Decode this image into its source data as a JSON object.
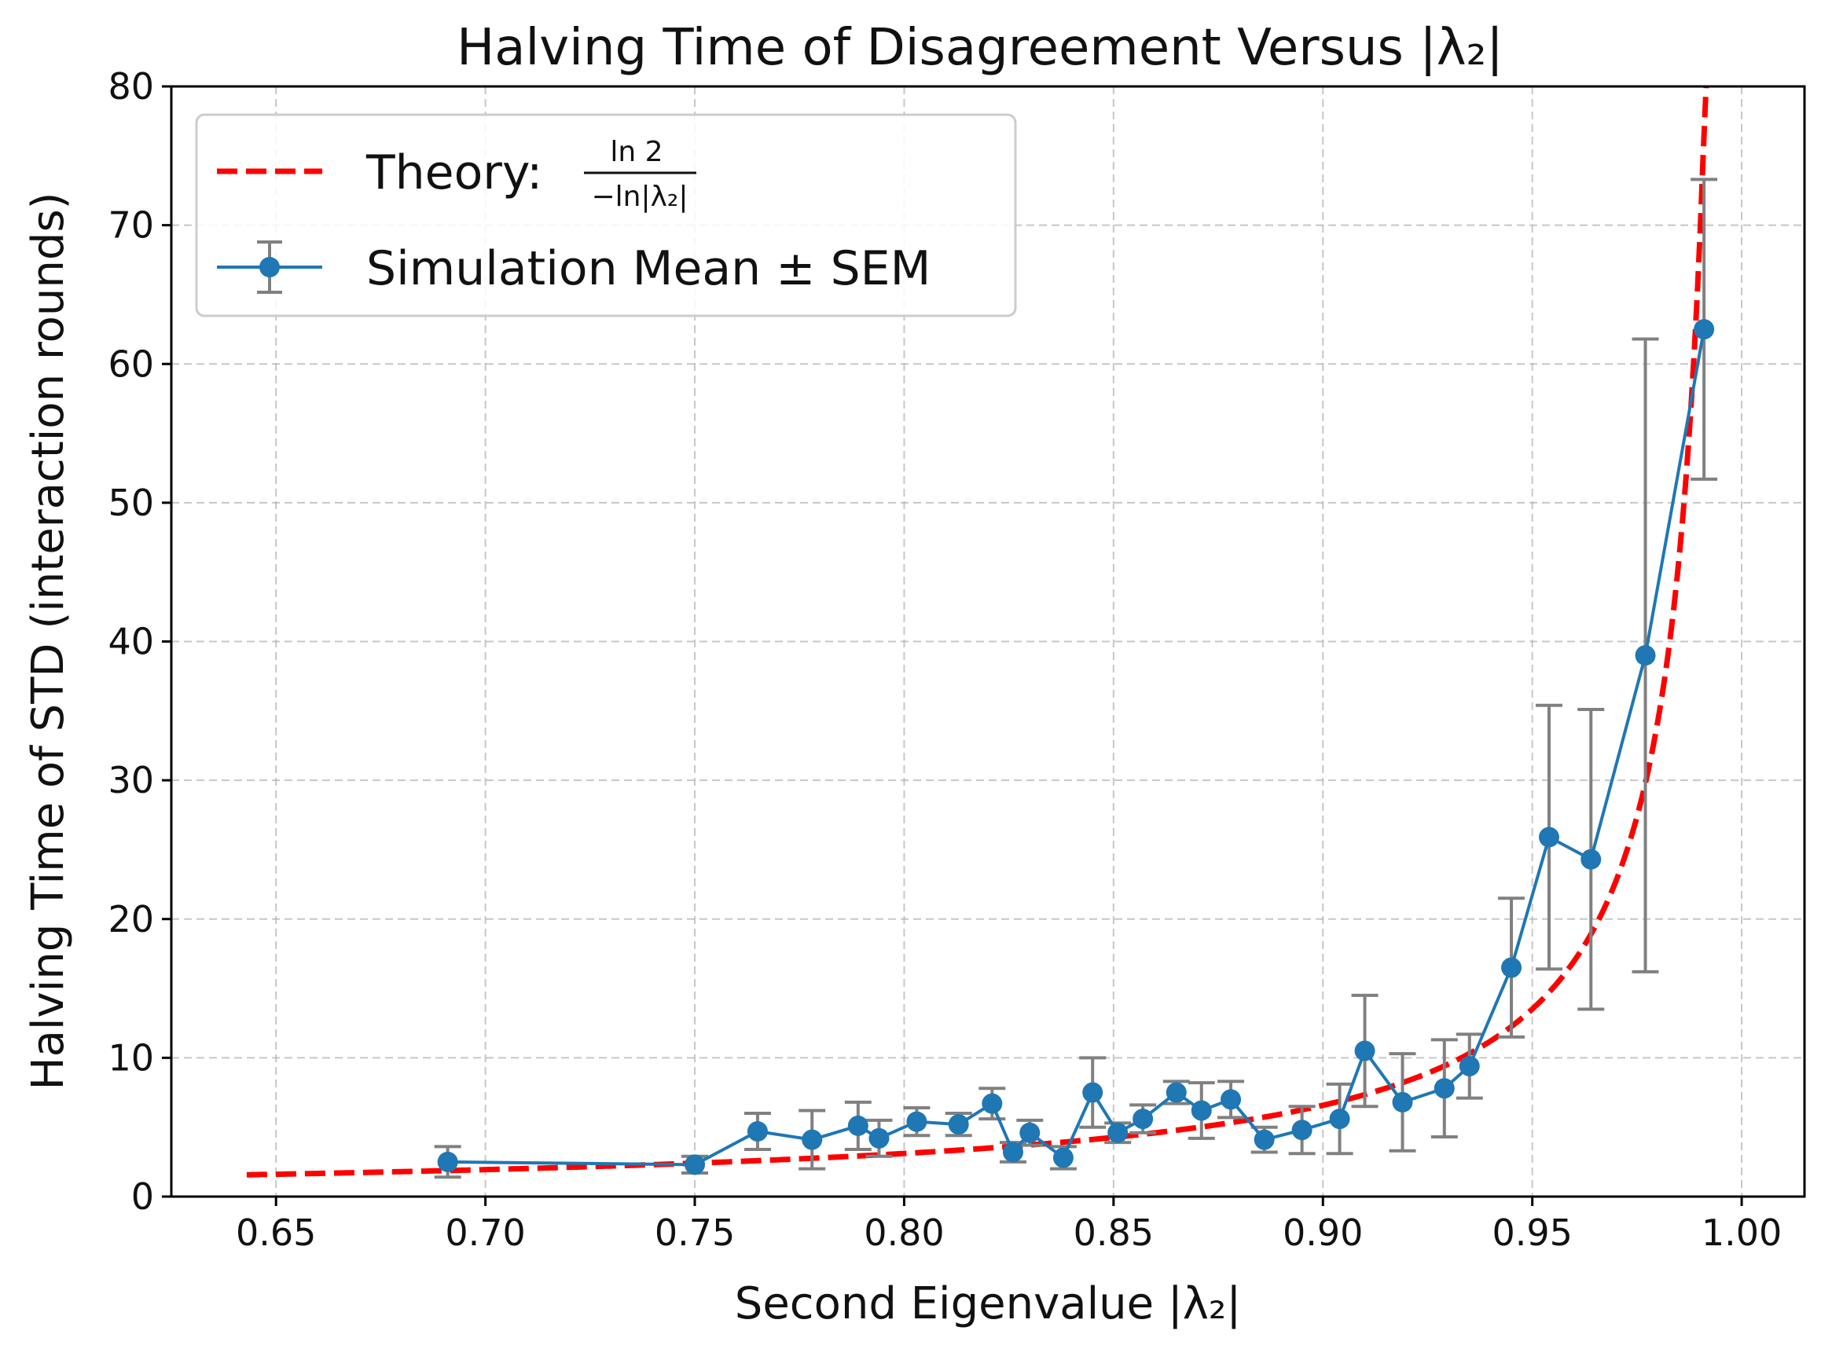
{
  "chart_data": {
    "type": "line",
    "title": "Halving Time of Disagreement Versus |λ₂|",
    "xlabel": "Second Eigenvalue |λ₂|",
    "ylabel": "Halving Time of STD (interaction rounds)",
    "xlim": [
      0.625,
      1.015
    ],
    "ylim": [
      0,
      80
    ],
    "xticks": [
      "0.65",
      "0.70",
      "0.75",
      "0.80",
      "0.85",
      "0.90",
      "0.95",
      "1.00"
    ],
    "yticks": [
      "0",
      "10",
      "20",
      "30",
      "40",
      "50",
      "60",
      "70",
      "80"
    ],
    "grid": true,
    "legend_position": "top-left",
    "legend": {
      "theory_prefix": "Theory: ",
      "theory_numerator": "ln 2",
      "theory_denominator": "−ln|λ₂|",
      "simulation": "Simulation Mean ± SEM"
    },
    "theory": {
      "name": "Theory: ln2 / −ln|λ₂|",
      "formula": "ln(2) / -ln(x)",
      "x_range": [
        0.643,
        0.9915
      ],
      "color": "#ff0000",
      "style": "dashed"
    },
    "series": [
      {
        "name": "Simulation Mean ± SEM",
        "color": "#1f77b4",
        "errorbar_color": "#808080",
        "x": [
          0.691,
          0.75,
          0.765,
          0.778,
          0.789,
          0.794,
          0.803,
          0.813,
          0.821,
          0.826,
          0.83,
          0.838,
          0.845,
          0.851,
          0.857,
          0.865,
          0.871,
          0.878,
          0.886,
          0.895,
          0.904,
          0.91,
          0.919,
          0.929,
          0.935,
          0.945,
          0.954,
          0.964,
          0.977,
          0.991
        ],
        "y": [
          2.5,
          2.3,
          4.7,
          4.1,
          5.1,
          4.2,
          5.4,
          5.2,
          6.7,
          3.2,
          4.6,
          2.8,
          7.5,
          4.6,
          5.6,
          7.5,
          6.2,
          7.0,
          4.1,
          4.8,
          5.6,
          10.5,
          6.8,
          7.8,
          9.4,
          16.5,
          25.9,
          24.3,
          39.0,
          62.5
        ],
        "yerr": [
          1.1,
          0.6,
          1.3,
          2.1,
          1.7,
          1.3,
          1.0,
          0.8,
          1.1,
          0.7,
          0.9,
          0.8,
          2.5,
          0.7,
          1.0,
          0.8,
          2.0,
          1.3,
          0.9,
          1.7,
          2.5,
          4.0,
          3.5,
          3.5,
          2.3,
          5.0,
          9.5,
          10.8,
          22.8,
          10.8
        ]
      }
    ]
  }
}
